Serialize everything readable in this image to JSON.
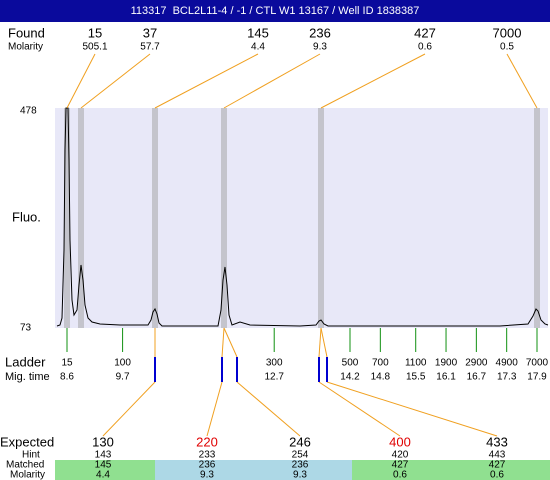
{
  "header": {
    "title": "113317  BCL2L11-4 / -1 / CTL W1 13167 / Well ID 1838387"
  },
  "found": {
    "label": "Found",
    "molarity_label": "Molarity",
    "peaks": [
      {
        "size": 15,
        "molarity": 505.1
      },
      {
        "size": 37,
        "molarity": 57.7
      },
      {
        "size": 145,
        "molarity": 4.4
      },
      {
        "size": 236,
        "molarity": 9.3
      },
      {
        "size": 427,
        "molarity": 0.6
      },
      {
        "size": 7000,
        "molarity": 0.5
      }
    ]
  },
  "plot": {
    "y_label": "Fluo.",
    "ymax": 478,
    "ymin": 73
  },
  "ladder": {
    "label": "Ladder",
    "time_label": "Mig. time",
    "sizes": [
      15,
      100,
      300,
      500,
      700,
      1100,
      1900,
      2900,
      4900,
      7000
    ],
    "times": [
      8.6,
      9.7,
      12.7,
      14.2,
      14.8,
      15.5,
      16.1,
      16.7,
      17.3,
      17.9
    ]
  },
  "results": {
    "expected_label": "Expected",
    "hint_label": "Hint",
    "matched_label": "Matched",
    "molarity_label": "Molarity",
    "columns": [
      {
        "expected": 130,
        "hint": 143,
        "matched": 145,
        "molarity": 4.4,
        "color": "#000000",
        "fill": "#90e090"
      },
      {
        "expected": 220,
        "hint": 233,
        "matched": 236,
        "molarity": 9.3,
        "color": "#e00000",
        "fill": "#add8e6"
      },
      {
        "expected": 246,
        "hint": 254,
        "matched": 236,
        "molarity": 9.3,
        "color": "#000000",
        "fill": "#add8e6"
      },
      {
        "expected": 400,
        "hint": 420,
        "matched": 427,
        "molarity": 0.6,
        "color": "#e00000",
        "fill": "#90e090"
      },
      {
        "expected": 433,
        "hint": 443,
        "matched": 427,
        "molarity": 0.6,
        "color": "#000000",
        "fill": "#90e090"
      }
    ]
  }
}
